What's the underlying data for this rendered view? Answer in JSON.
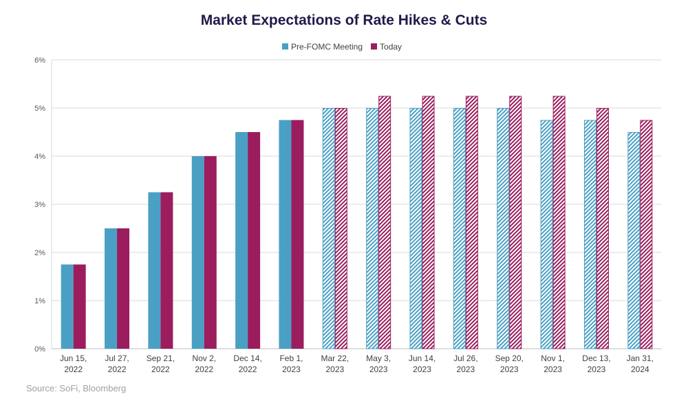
{
  "chart_data": {
    "type": "bar",
    "title": "Market Expectations of Rate Hikes & Cuts",
    "source": "Source: SoFi, Bloomberg",
    "categories": [
      [
        "Jun 15,",
        "2022"
      ],
      [
        "Jul 27,",
        "2022"
      ],
      [
        "Sep 21,",
        "2022"
      ],
      [
        "Nov 2,",
        "2022"
      ],
      [
        "Dec 14,",
        "2022"
      ],
      [
        "Feb 1,",
        "2023"
      ],
      [
        "Mar 22,",
        "2023"
      ],
      [
        "May 3,",
        "2023"
      ],
      [
        "Jun 14,",
        "2023"
      ],
      [
        "Jul 26,",
        "2023"
      ],
      [
        "Sep 20,",
        "2023"
      ],
      [
        "Nov 1,",
        "2023"
      ],
      [
        "Dec 13,",
        "2023"
      ],
      [
        "Jan 31,",
        "2024"
      ]
    ],
    "series": [
      {
        "name": "Pre-FOMC Meeting",
        "color": "#4aa0c4",
        "values": [
          1.75,
          2.5,
          3.25,
          4,
          4.5,
          4.75,
          5,
          5,
          5,
          5,
          5,
          4.75,
          4.75,
          4.5
        ]
      },
      {
        "name": "Today",
        "color": "#9b1d5e",
        "values": [
          1.75,
          2.5,
          3.25,
          4,
          4.5,
          4.75,
          5,
          5.25,
          5.25,
          5.25,
          5.25,
          5.25,
          5,
          4.75
        ]
      }
    ],
    "hatched_from_category": "Mar 22, 2023",
    "ylim": [
      0,
      6
    ],
    "yticks": [
      "0%",
      "1%",
      "2%",
      "3%",
      "4%",
      "5%",
      "6%"
    ],
    "grid": true,
    "legend": "top-center"
  }
}
